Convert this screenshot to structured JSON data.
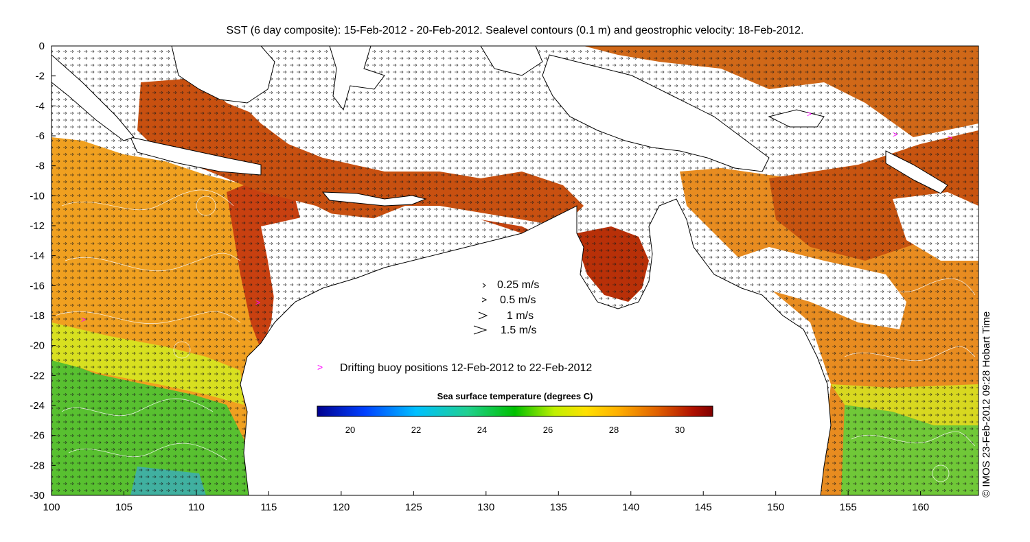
{
  "title": "SST (6 day composite): 15-Feb-2012 - 20-Feb-2012. Sealevel contours (0.1 m) and geostrophic velocity: 18-Feb-2012.",
  "credit": "© IMOS 23-Feb-2012 09:28 Hobart Time",
  "axes": {
    "x_ticks": [
      "100",
      "105",
      "110",
      "115",
      "120",
      "125",
      "130",
      "135",
      "140",
      "145",
      "150",
      "155",
      "160"
    ],
    "y_ticks": [
      "0",
      "-2",
      "-4",
      "-6",
      "-8",
      "-10",
      "-12",
      "-14",
      "-16",
      "-18",
      "-20",
      "-22",
      "-24",
      "-26",
      "-28",
      "-30"
    ],
    "lon_range": [
      100,
      164
    ],
    "lat_range": [
      -30,
      0
    ]
  },
  "velocity_legend": [
    {
      "label": "0.25 m/s",
      "speed": 0.25
    },
    {
      "label": "0.5 m/s",
      "speed": 0.5
    },
    {
      "label": "1 m/s",
      "speed": 1
    },
    {
      "label": "1.5 m/s",
      "speed": 1.5
    }
  ],
  "buoy_legend": {
    "symbol": ">",
    "label": "Drifting buoy positions 12-Feb-2012 to 22-Feb-2012",
    "color": "#ff00ff"
  },
  "colorbar": {
    "title": "Sea surface temperature (degrees C)",
    "range": [
      19,
      31
    ],
    "ticks": [
      "20",
      "22",
      "24",
      "26",
      "28",
      "30"
    ],
    "colors": [
      "#00008f",
      "#0050ff",
      "#00c0ff",
      "#20d080",
      "#00c000",
      "#80e000",
      "#f0f000",
      "#ffc000",
      "#f08000",
      "#d05000",
      "#a00000",
      "#800000"
    ]
  }
}
